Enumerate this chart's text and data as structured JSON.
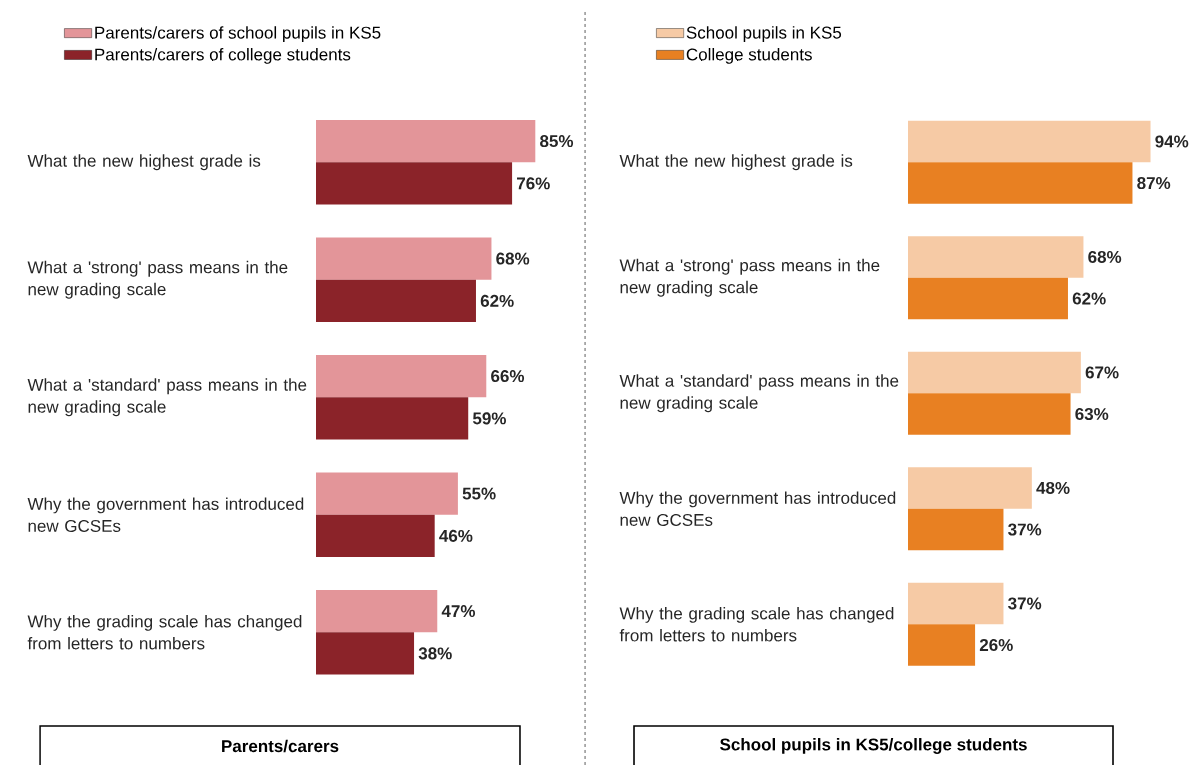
{
  "chart_data": [
    {
      "type": "bar",
      "orientation": "horizontal",
      "title": "Parents/carers",
      "legend": "top left",
      "categories": [
        "What the new highest grade is",
        "What a 'strong' pass means in the new grading scale",
        "What a 'standard' pass means in the new grading scale",
        "Why the government has introduced new GCSEs",
        "Why the grading scale has changed from letters to numbers"
      ],
      "series": [
        {
          "name": "Parents/carers of school pupils in KS5",
          "color": "#e39599",
          "values": [
            85,
            68,
            66,
            55,
            47
          ],
          "value_labels": [
            "85%",
            "68%",
            "66%",
            "55%",
            "47%"
          ]
        },
        {
          "name": "Parents/carers of college students",
          "color": "#8b2329",
          "values": [
            76,
            62,
            59,
            46,
            38
          ],
          "value_labels": [
            "76%",
            "62%",
            "59%",
            "46%",
            "38%"
          ]
        }
      ]
    },
    {
      "type": "bar",
      "orientation": "horizontal",
      "title": "School pupils in KS5/college students",
      "legend": "top left",
      "categories": [
        "What the new highest grade is",
        "What a 'strong' pass means in the new grading scale",
        "What a 'standard' pass means in the new grading scale",
        "Why the government has introduced new GCSEs",
        "Why the grading scale has changed from letters to numbers"
      ],
      "series": [
        {
          "name": "School pupils in KS5",
          "color": "#f6caa5",
          "values": [
            94,
            68,
            67,
            48,
            37
          ],
          "value_labels": [
            "94%",
            "68%",
            "67%",
            "48%",
            "37%"
          ]
        },
        {
          "name": "College students",
          "color": "#e88022",
          "values": [
            87,
            62,
            63,
            37,
            26
          ],
          "value_labels": [
            "87%",
            "62%",
            "63%",
            "37%",
            "26%"
          ]
        }
      ]
    }
  ]
}
